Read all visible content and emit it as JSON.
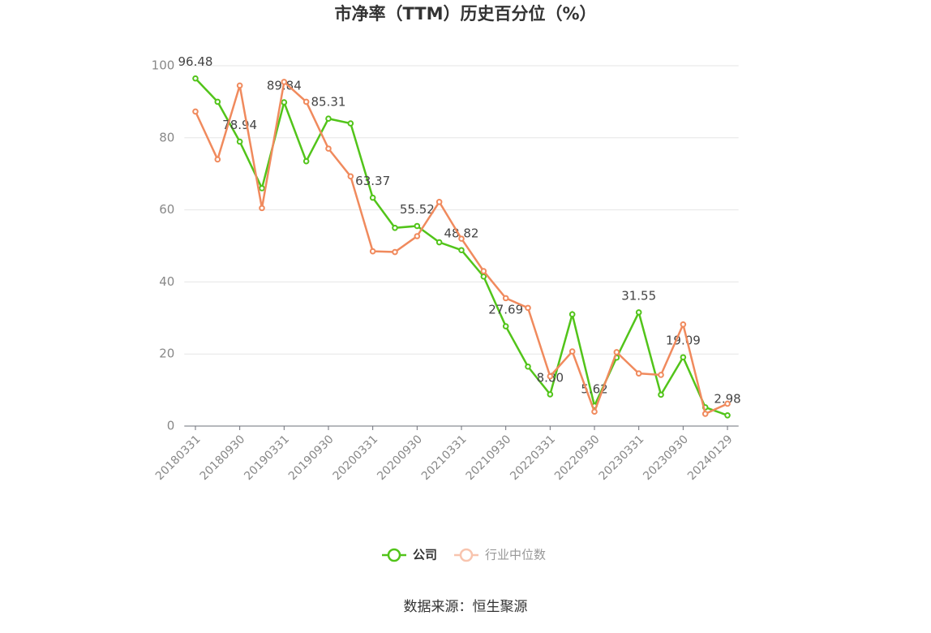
{
  "chart_data": {
    "type": "line",
    "title": "市净率（TTM）历史百分位（%）",
    "categories": [
      "20180331",
      null,
      "20180930",
      null,
      "20190331",
      null,
      "20190930",
      null,
      "20200331",
      null,
      "20200930",
      null,
      "20210331",
      null,
      "20210930",
      null,
      "20220331",
      null,
      "20220930",
      null,
      "20230331",
      null,
      "20230930",
      null,
      "20240129"
    ],
    "series": [
      {
        "name": "公司",
        "color": "#52c41a",
        "values": [
          96.48,
          90,
          78.94,
          66,
          89.84,
          73.5,
          85.31,
          84,
          63.37,
          55,
          55.52,
          51,
          48.82,
          41.5,
          27.69,
          16.5,
          8.8,
          31,
          5.62,
          19,
          31.55,
          8.7,
          19.09,
          5.2,
          2.98
        ],
        "value_labels": [
          "96.48",
          null,
          "78.94",
          null,
          "89.84",
          null,
          "85.31",
          null,
          "63.37",
          null,
          "55.52",
          null,
          "48.82",
          null,
          "27.69",
          null,
          "8.80",
          null,
          "5.62",
          null,
          "31.55",
          null,
          "19.09",
          null,
          "2.98"
        ]
      },
      {
        "name": "行业中位数",
        "color": "#f08a5d",
        "values": [
          87.3,
          74,
          94.5,
          60.5,
          95.5,
          90,
          77,
          69.3,
          48.5,
          48.3,
          52.7,
          62.2,
          52,
          43,
          35.5,
          32.8,
          13.8,
          20.7,
          4,
          20.5,
          14.6,
          14.2,
          28.2,
          3.4,
          6.2
        ]
      }
    ],
    "ylim": [
      0,
      100
    ],
    "yticks": [
      0,
      20,
      40,
      60,
      80,
      100
    ],
    "grid": true,
    "source": "数据来源：恒生聚源"
  }
}
